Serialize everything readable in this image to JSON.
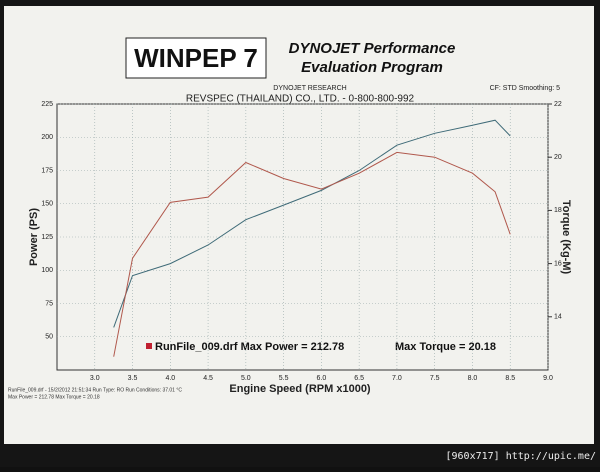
{
  "header": {
    "logo": "WINPEP 7",
    "title_line1": "DYNOJET Performance",
    "title_line2": "Evaluation Program",
    "company": "DYNOJET RESEARCH",
    "settings": "CF: STD Smoothing: 5"
  },
  "chart_data": {
    "type": "line",
    "title": "REVSPEC (THAILAND) CO., LTD. - 0-800-800-992",
    "x_label": "Engine Speed (RPM x1000)",
    "y_label": "Power (PS)",
    "y2_label": "Torque (Kg-M)",
    "annotation": "RunFile_009.drf Max Power = 212.78",
    "annotation2": "Max Torque = 20.18",
    "x": [
      3.25,
      3.5,
      4.0,
      4.5,
      5.0,
      5.5,
      6.0,
      6.5,
      7.0,
      7.5,
      8.0,
      8.3,
      8.5
    ],
    "series": [
      {
        "name": "Power",
        "color": "#3f6b78",
        "values": [
          57,
          96,
          105,
          119,
          138,
          149,
          160,
          175,
          194,
          203,
          209,
          212.8,
          201
        ]
      },
      {
        "name": "Torque",
        "color": "#b0584c",
        "axis": "y2",
        "values": [
          12.5,
          16.2,
          18.3,
          18.5,
          19.8,
          19.2,
          18.8,
          19.4,
          20.18,
          20.0,
          19.4,
          18.7,
          17.1
        ]
      }
    ],
    "xlim": [
      2.5,
      9.0
    ],
    "xticks": [
      {
        "value": 3,
        "label": "3.0"
      },
      3.5,
      {
        "value": 4,
        "label": "4.0"
      },
      4.5,
      {
        "value": 5,
        "label": "5.0"
      },
      5.5,
      {
        "value": 6,
        "label": "6.0"
      },
      6.5,
      {
        "value": 7,
        "label": "7.0"
      },
      7.5,
      {
        "value": 8,
        "label": "8.0"
      },
      8.5,
      {
        "value": 9,
        "label": "9.0"
      }
    ],
    "ylim": [
      25,
      225
    ],
    "yticks": [
      50,
      75,
      100,
      125,
      150,
      175,
      200,
      225
    ],
    "y2lim": [
      12,
      22
    ],
    "y2ticks": [
      14,
      16,
      18,
      20,
      22
    ],
    "grid": true
  },
  "footer": {
    "line1": "RunFile_009.drf - 15/2/2012 21:51:34   Run Type: RO   Run Conditions: 37.01 °C",
    "line2": "Max Power = 212.78  Max Torque = 20.18",
    "watermark": "[960x717] http://upic.me/"
  }
}
